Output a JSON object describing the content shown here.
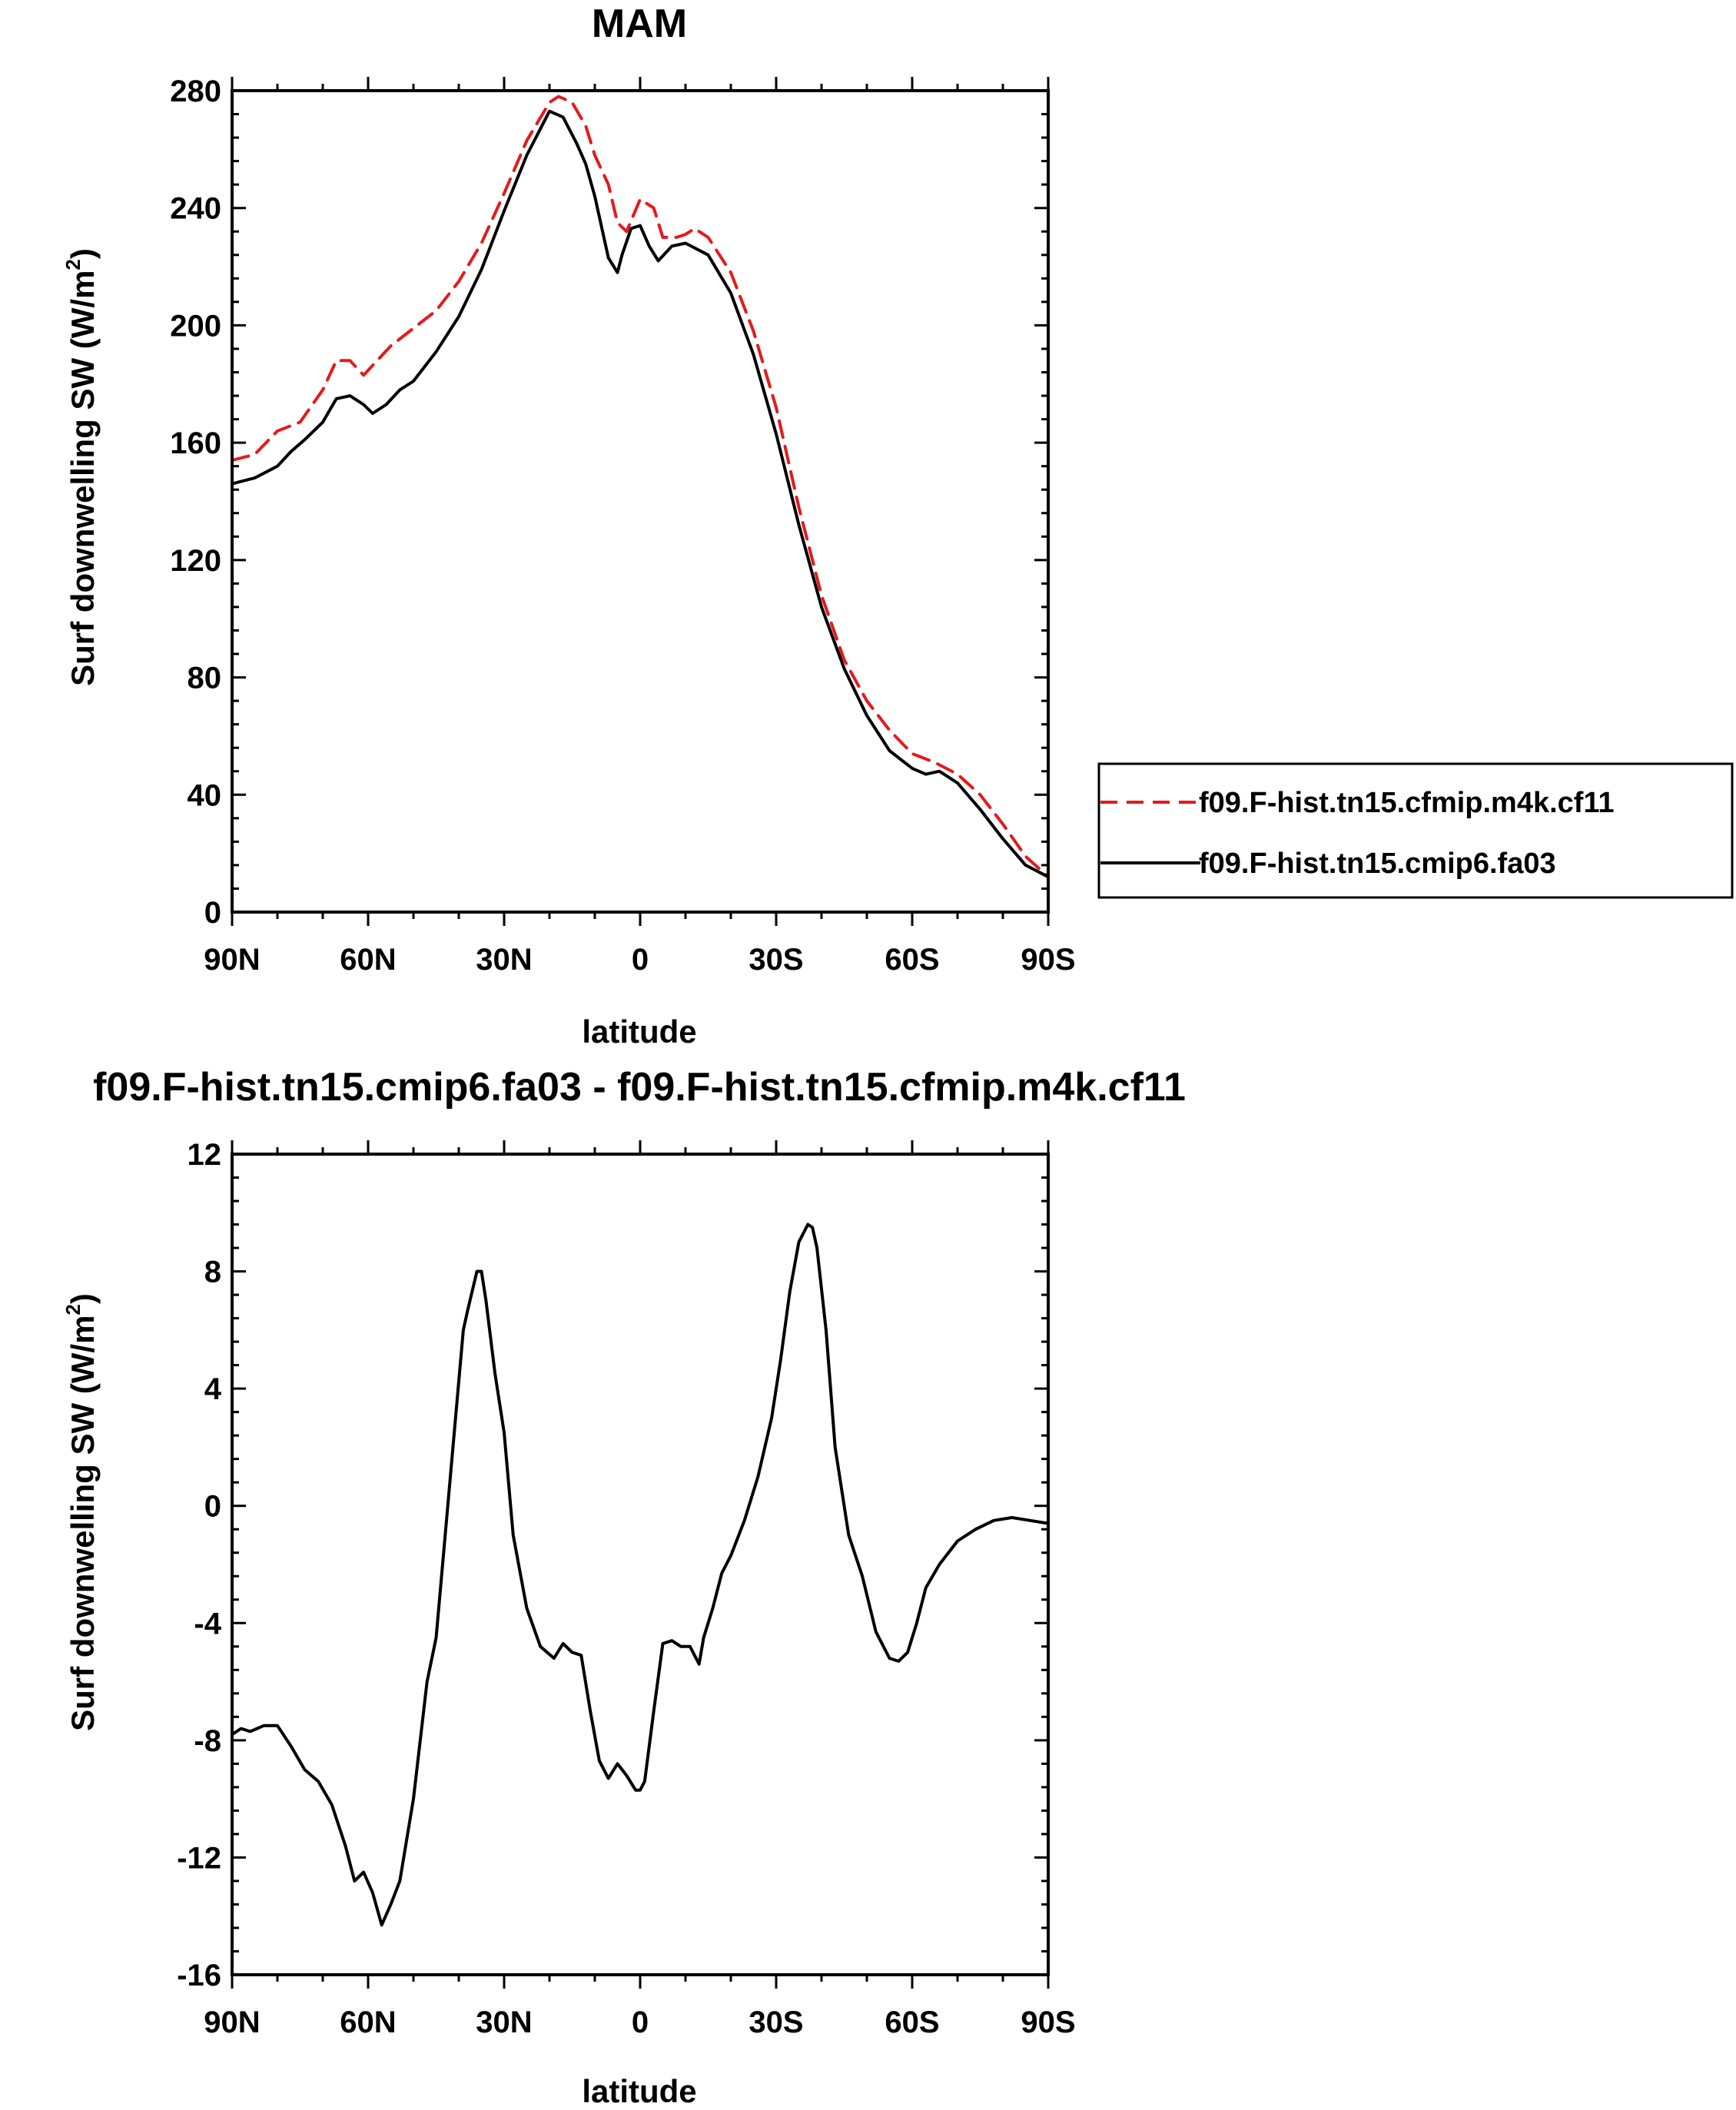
{
  "chart_data": [
    {
      "type": "line",
      "title": "MAM",
      "xlabel": "latitude",
      "ylabel": "Surf downwelling SW (W/m",
      "ylabel_sup": "2",
      "ylabel_tail": ")",
      "xlim": [
        90,
        -90
      ],
      "ylim": [
        0,
        280
      ],
      "x_ticks": [
        90,
        60,
        30,
        0,
        -30,
        -60,
        -90
      ],
      "x_tick_labels": [
        "90N",
        "60N",
        "30N",
        "0",
        "30S",
        "60S",
        "90S"
      ],
      "y_ticks": [
        0,
        40,
        80,
        120,
        160,
        200,
        240,
        280
      ],
      "y_tick_labels": [
        "0",
        "40",
        "80",
        "120",
        "160",
        "200",
        "240",
        "280"
      ],
      "legend_position": "right",
      "series": [
        {
          "name": "f09.F-hist.tn15.cfmip.m4k.cf11",
          "color": "#e41a1c",
          "dash": true,
          "x": [
            90,
            85,
            80,
            75,
            70,
            67,
            64,
            61,
            58,
            55,
            50,
            45,
            40,
            35,
            30,
            25,
            20,
            18,
            15,
            12,
            10,
            7,
            5,
            3,
            0,
            -3,
            -5,
            -8,
            -10,
            -12,
            -15,
            -20,
            -25,
            -30,
            -35,
            -40,
            -45,
            -50,
            -55,
            -60,
            -65,
            -70,
            -75,
            -80,
            -85,
            -90
          ],
          "values": [
            154,
            156,
            164,
            167,
            178,
            188,
            188,
            183,
            188,
            193,
            199,
            205,
            215,
            228,
            245,
            263,
            276,
            278,
            276,
            268,
            258,
            248,
            235,
            232,
            243,
            240,
            230,
            230,
            231,
            233,
            230,
            218,
            198,
            172,
            138,
            108,
            86,
            72,
            62,
            54,
            51,
            47,
            40,
            30,
            19,
            12
          ]
        },
        {
          "name": "f09.F-hist.tn15.cmip6.fa03",
          "color": "#000000",
          "dash": false,
          "x": [
            90,
            85,
            80,
            77,
            74,
            70,
            67,
            64,
            61,
            59,
            56,
            53,
            50,
            45,
            40,
            35,
            30,
            25,
            20,
            17,
            14,
            12,
            10,
            7,
            5,
            4,
            2,
            0,
            -2,
            -4,
            -7,
            -10,
            -15,
            -20,
            -25,
            -30,
            -35,
            -40,
            -45,
            -50,
            -55,
            -60,
            -63,
            -66,
            -70,
            -75,
            -80,
            -85,
            -90
          ],
          "values": [
            146,
            148,
            152,
            157,
            161,
            167,
            175,
            176,
            173,
            170,
            173,
            178,
            181,
            191,
            203,
            219,
            239,
            258,
            273,
            271,
            262,
            255,
            244,
            223,
            218,
            224,
            233,
            234,
            227,
            222,
            227,
            228,
            224,
            211,
            190,
            163,
            132,
            104,
            83,
            67,
            55,
            49,
            47,
            48,
            44,
            35,
            25,
            16,
            12
          ]
        }
      ]
    },
    {
      "type": "line",
      "title": "f09.F-hist.tn15.cmip6.fa03 - f09.F-hist.tn15.cfmip.m4k.cf11",
      "xlabel": "latitude",
      "ylabel": "Surf downwelling SW (W/m",
      "ylabel_sup": "2",
      "ylabel_tail": ")",
      "xlim": [
        90,
        -90
      ],
      "ylim": [
        -16,
        12
      ],
      "x_ticks": [
        90,
        60,
        30,
        0,
        -30,
        -60,
        -90
      ],
      "x_tick_labels": [
        "90N",
        "60N",
        "30N",
        "0",
        "30S",
        "60S",
        "90S"
      ],
      "y_ticks": [
        -16,
        -12,
        -8,
        -4,
        0,
        4,
        8,
        12
      ],
      "y_tick_labels": [
        "-16",
        "-12",
        "-8",
        "-4",
        "0",
        "4",
        "8",
        "12"
      ],
      "series": [
        {
          "color": "#000000",
          "dash": false,
          "x": [
            90,
            88,
            86,
            83,
            80,
            77,
            74,
            71,
            68,
            65,
            63,
            61,
            59,
            57,
            55,
            53,
            50,
            47,
            45,
            43,
            41,
            39,
            38,
            36,
            35,
            34,
            32,
            30,
            28,
            25,
            22,
            19,
            17,
            15,
            13,
            11,
            9,
            7,
            5,
            3,
            1,
            0,
            -1,
            -3,
            -5,
            -7,
            -9,
            -11,
            -13,
            -14,
            -16,
            -18,
            -20,
            -23,
            -26,
            -29,
            -31,
            -33,
            -35,
            -37,
            -38,
            -39,
            -41,
            -43,
            -46,
            -49,
            -52,
            -55,
            -57,
            -59,
            -61,
            -63,
            -66,
            -70,
            -74,
            -78,
            -82,
            -86,
            -90
          ],
          "values": [
            -7.8,
            -7.6,
            -7.7,
            -7.5,
            -7.5,
            -8.2,
            -9.0,
            -9.4,
            -10.2,
            -11.6,
            -12.8,
            -12.5,
            -13.2,
            -14.3,
            -13.6,
            -12.8,
            -10.0,
            -6.0,
            -4.5,
            -1.0,
            2.5,
            6.0,
            6.7,
            8.0,
            8.0,
            7.0,
            4.5,
            2.5,
            -1.0,
            -3.5,
            -4.8,
            -5.2,
            -4.7,
            -5.0,
            -5.1,
            -7.0,
            -8.7,
            -9.3,
            -8.8,
            -9.2,
            -9.7,
            -9.7,
            -9.4,
            -7.0,
            -4.7,
            -4.6,
            -4.8,
            -4.8,
            -5.4,
            -4.5,
            -3.5,
            -2.3,
            -1.7,
            -0.5,
            1.0,
            3.0,
            5.0,
            7.3,
            9.0,
            9.6,
            9.5,
            8.8,
            6.0,
            2.0,
            -1.0,
            -2.4,
            -4.3,
            -5.2,
            -5.3,
            -5.0,
            -4.0,
            -2.8,
            -2.0,
            -1.2,
            -0.8,
            -0.5,
            -0.4,
            -0.5,
            -0.6
          ]
        }
      ]
    }
  ]
}
